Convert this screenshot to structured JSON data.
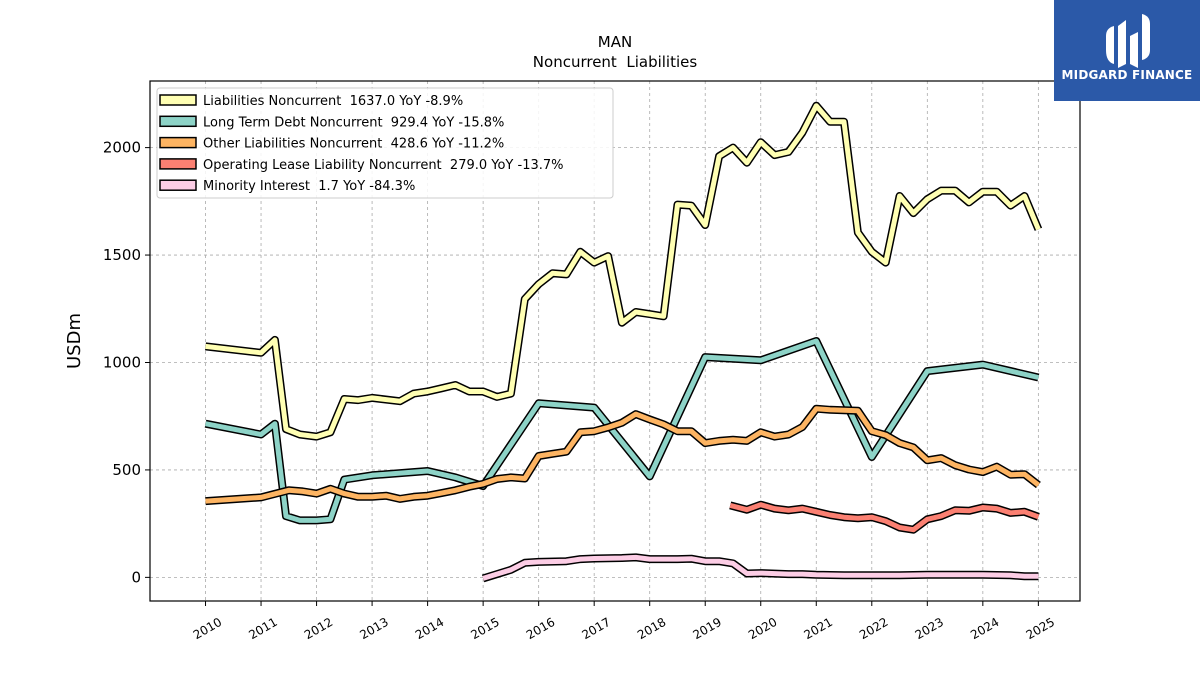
{
  "brand": {
    "name": "MIDGARD FINANCE",
    "background": "#2b59a8"
  },
  "chart_data": {
    "type": "line",
    "title": "MAN",
    "subtitle": "Noncurrent  Liabilities",
    "ylabel": "USDm",
    "xlabel": "",
    "ylim": [
      -110,
      2310
    ],
    "xlim": [
      2009.0,
      2025.75
    ],
    "yticks": [
      0,
      500,
      1000,
      1500,
      2000
    ],
    "xticks": [
      "2010",
      "2011",
      "2012",
      "2013",
      "2014",
      "2015",
      "2016",
      "2017",
      "2018",
      "2019",
      "2020",
      "2021",
      "2022",
      "2023",
      "2024",
      "2025"
    ],
    "grid": true,
    "legend_position": "upper-left",
    "series": [
      {
        "name": "Liabilities Noncurrent  1637.0 YoY -8.9%",
        "color": "#ffffb3",
        "points": [
          [
            2010.0,
            1075
          ],
          [
            2011.0,
            1045
          ],
          [
            2011.25,
            1105
          ],
          [
            2011.45,
            690
          ],
          [
            2011.7,
            665
          ],
          [
            2012.0,
            655
          ],
          [
            2012.25,
            675
          ],
          [
            2012.5,
            830
          ],
          [
            2012.75,
            825
          ],
          [
            2013.0,
            835
          ],
          [
            2013.5,
            820
          ],
          [
            2013.75,
            855
          ],
          [
            2014.0,
            865
          ],
          [
            2014.25,
            880
          ],
          [
            2014.5,
            895
          ],
          [
            2014.75,
            865
          ],
          [
            2015.0,
            865
          ],
          [
            2015.25,
            840
          ],
          [
            2015.5,
            855
          ],
          [
            2015.75,
            1295
          ],
          [
            2016.0,
            1365
          ],
          [
            2016.25,
            1415
          ],
          [
            2016.5,
            1410
          ],
          [
            2016.75,
            1515
          ],
          [
            2017.0,
            1465
          ],
          [
            2017.25,
            1495
          ],
          [
            2017.5,
            1185
          ],
          [
            2017.75,
            1235
          ],
          [
            2018.0,
            1225
          ],
          [
            2018.25,
            1215
          ],
          [
            2018.5,
            1735
          ],
          [
            2018.75,
            1730
          ],
          [
            2019.0,
            1640
          ],
          [
            2019.25,
            1960
          ],
          [
            2019.5,
            2000
          ],
          [
            2019.75,
            1930
          ],
          [
            2020.0,
            2025
          ],
          [
            2020.25,
            1965
          ],
          [
            2020.5,
            1980
          ],
          [
            2020.75,
            2070
          ],
          [
            2021.0,
            2195
          ],
          [
            2021.25,
            2120
          ],
          [
            2021.5,
            2120
          ],
          [
            2021.75,
            1605
          ],
          [
            2022.0,
            1515
          ],
          [
            2022.25,
            1465
          ],
          [
            2022.5,
            1775
          ],
          [
            2022.75,
            1695
          ],
          [
            2023.0,
            1760
          ],
          [
            2023.25,
            1800
          ],
          [
            2023.5,
            1800
          ],
          [
            2023.75,
            1745
          ],
          [
            2024.0,
            1795
          ],
          [
            2024.25,
            1795
          ],
          [
            2024.5,
            1730
          ],
          [
            2024.75,
            1775
          ],
          [
            2025.0,
            1620
          ]
        ]
      },
      {
        "name": "Long Term Debt Noncurrent  929.4 YoY -15.8%",
        "color": "#8dd3c7",
        "points": [
          [
            2010.0,
            715
          ],
          [
            2011.0,
            665
          ],
          [
            2011.25,
            715
          ],
          [
            2011.45,
            285
          ],
          [
            2011.7,
            265
          ],
          [
            2012.0,
            265
          ],
          [
            2012.25,
            270
          ],
          [
            2012.5,
            455
          ],
          [
            2013.0,
            475
          ],
          [
            2014.0,
            495
          ],
          [
            2014.5,
            465
          ],
          [
            2015.0,
            425
          ],
          [
            2016.0,
            810
          ],
          [
            2017.0,
            790
          ],
          [
            2018.0,
            470
          ],
          [
            2019.0,
            1025
          ],
          [
            2020.0,
            1010
          ],
          [
            2021.0,
            1100
          ],
          [
            2022.0,
            560
          ],
          [
            2023.0,
            960
          ],
          [
            2024.0,
            990
          ],
          [
            2025.0,
            930
          ]
        ]
      },
      {
        "name": "Other Liabilities Noncurrent  428.6 YoY -11.2%",
        "color": "#fdb462",
        "points": [
          [
            2010.0,
            355
          ],
          [
            2011.0,
            372
          ],
          [
            2011.5,
            405
          ],
          [
            2011.75,
            400
          ],
          [
            2012.0,
            390
          ],
          [
            2012.25,
            412
          ],
          [
            2012.5,
            390
          ],
          [
            2012.75,
            375
          ],
          [
            2013.0,
            375
          ],
          [
            2013.25,
            380
          ],
          [
            2013.5,
            365
          ],
          [
            2013.75,
            375
          ],
          [
            2014.0,
            380
          ],
          [
            2014.25,
            392
          ],
          [
            2014.5,
            405
          ],
          [
            2014.75,
            422
          ],
          [
            2015.0,
            435
          ],
          [
            2015.25,
            458
          ],
          [
            2015.5,
            465
          ],
          [
            2015.75,
            460
          ],
          [
            2016.0,
            565
          ],
          [
            2016.25,
            575
          ],
          [
            2016.5,
            585
          ],
          [
            2016.75,
            675
          ],
          [
            2017.0,
            680
          ],
          [
            2017.25,
            698
          ],
          [
            2017.5,
            720
          ],
          [
            2017.75,
            760
          ],
          [
            2018.0,
            735
          ],
          [
            2018.25,
            712
          ],
          [
            2018.5,
            680
          ],
          [
            2018.75,
            680
          ],
          [
            2019.0,
            625
          ],
          [
            2019.25,
            635
          ],
          [
            2019.5,
            640
          ],
          [
            2019.75,
            635
          ],
          [
            2020.0,
            675
          ],
          [
            2020.25,
            655
          ],
          [
            2020.5,
            665
          ],
          [
            2020.75,
            700
          ],
          [
            2021.0,
            785
          ],
          [
            2021.25,
            780
          ],
          [
            2021.5,
            778
          ],
          [
            2021.75,
            775
          ],
          [
            2022.0,
            680
          ],
          [
            2022.25,
            662
          ],
          [
            2022.5,
            625
          ],
          [
            2022.75,
            605
          ],
          [
            2023.0,
            545
          ],
          [
            2023.25,
            555
          ],
          [
            2023.5,
            522
          ],
          [
            2023.75,
            502
          ],
          [
            2024.0,
            490
          ],
          [
            2024.25,
            515
          ],
          [
            2024.5,
            478
          ],
          [
            2024.75,
            480
          ],
          [
            2025.0,
            430
          ]
        ]
      },
      {
        "name": "Operating Lease Liability Noncurrent  279.0 YoY -13.7%",
        "color": "#fb8072",
        "points": [
          [
            2019.45,
            335
          ],
          [
            2019.75,
            315
          ],
          [
            2020.0,
            338
          ],
          [
            2020.25,
            320
          ],
          [
            2020.5,
            312
          ],
          [
            2020.75,
            320
          ],
          [
            2021.0,
            305
          ],
          [
            2021.25,
            290
          ],
          [
            2021.5,
            280
          ],
          [
            2021.75,
            275
          ],
          [
            2022.0,
            280
          ],
          [
            2022.25,
            262
          ],
          [
            2022.5,
            232
          ],
          [
            2022.75,
            222
          ],
          [
            2023.0,
            270
          ],
          [
            2023.25,
            285
          ],
          [
            2023.5,
            312
          ],
          [
            2023.75,
            310
          ],
          [
            2024.0,
            325
          ],
          [
            2024.25,
            320
          ],
          [
            2024.5,
            300
          ],
          [
            2024.75,
            305
          ],
          [
            2025.0,
            282
          ]
        ]
      },
      {
        "name": "Minority Interest  1.7 YoY -84.3%",
        "color": "#fccde5",
        "points": [
          [
            2015.0,
            -5
          ],
          [
            2015.5,
            35
          ],
          [
            2015.75,
            68
          ],
          [
            2016.0,
            72
          ],
          [
            2016.5,
            75
          ],
          [
            2016.75,
            85
          ],
          [
            2017.0,
            88
          ],
          [
            2017.5,
            90
          ],
          [
            2017.75,
            93
          ],
          [
            2018.0,
            85
          ],
          [
            2018.5,
            85
          ],
          [
            2018.75,
            87
          ],
          [
            2019.0,
            75
          ],
          [
            2019.25,
            75
          ],
          [
            2019.5,
            65
          ],
          [
            2019.75,
            18
          ],
          [
            2020.0,
            20
          ],
          [
            2020.5,
            15
          ],
          [
            2020.75,
            15
          ],
          [
            2021.0,
            12
          ],
          [
            2021.5,
            10
          ],
          [
            2022.0,
            10
          ],
          [
            2022.5,
            10
          ],
          [
            2023.0,
            12
          ],
          [
            2023.5,
            12
          ],
          [
            2024.0,
            12
          ],
          [
            2024.5,
            10
          ],
          [
            2024.75,
            5
          ],
          [
            2025.0,
            5
          ]
        ]
      }
    ]
  }
}
